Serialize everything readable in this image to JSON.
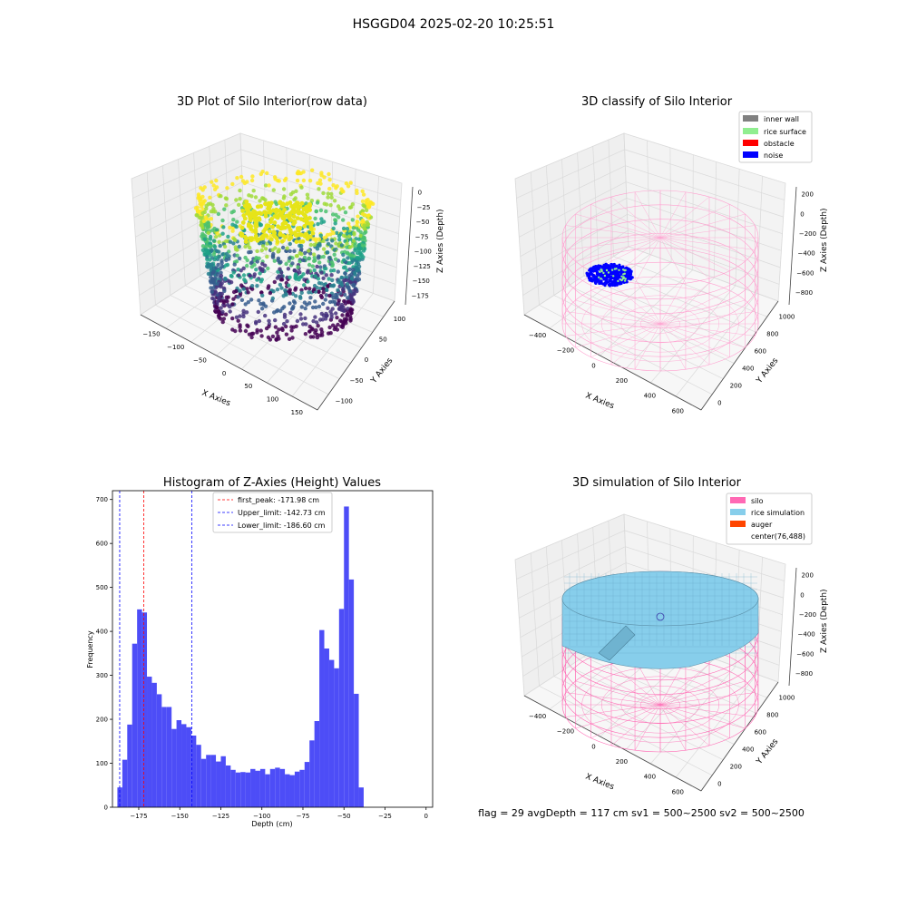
{
  "suptitle": "HSGGD04 2025-02-20 10:25:51",
  "status_line": "flag = 29  avgDepth = 117 cm  sv1 = 500~2500  sv2 = 500~2500",
  "panel_raw": {
    "title": "3D Plot of Silo Interior(row data)",
    "xlabel": "X Axies",
    "ylabel": "Y Axies",
    "zlabel": "Z Axies (Depth)",
    "xticks": [
      "−150",
      "−100",
      "−50",
      "0",
      "50",
      "100",
      "150"
    ],
    "yticks": [
      "−100",
      "−50",
      "0",
      "50",
      "100"
    ],
    "zticks": [
      "0",
      "−25",
      "−50",
      "−75",
      "−100",
      "−125",
      "−150",
      "−175"
    ],
    "colormap": "viridis"
  },
  "panel_classify": {
    "title": "3D classify of Silo Interior",
    "xlabel": "X Axies",
    "ylabel": "Y Axies",
    "zlabel": "Z Axies (Depth)",
    "xticks": [
      "−400",
      "−200",
      "0",
      "200",
      "400",
      "600"
    ],
    "yticks": [
      "0",
      "200",
      "400",
      "600",
      "800",
      "1000"
    ],
    "zticks": [
      "200",
      "0",
      "−200",
      "−400",
      "−600",
      "−800"
    ],
    "legend": [
      {
        "label": "inner wall",
        "color": "#808080"
      },
      {
        "label": "rice surface",
        "color": "#90ee90"
      },
      {
        "label": "obstacle",
        "color": "#ff0000"
      },
      {
        "label": "noise",
        "color": "#0000ff"
      }
    ],
    "wire_color": "#ff9fcf"
  },
  "panel_sim": {
    "title": "3D simulation of Silo Interior",
    "xlabel": "X Axies",
    "ylabel": "Y Axies",
    "zlabel": "Z Axies (Depth)",
    "xticks": [
      "−400",
      "−200",
      "0",
      "200",
      "400",
      "600"
    ],
    "yticks": [
      "0",
      "200",
      "400",
      "600",
      "800",
      "1000"
    ],
    "zticks": [
      "200",
      "0",
      "−200",
      "−400",
      "−600",
      "−800"
    ],
    "legend": [
      {
        "label": "silo",
        "color": "#ff69b4"
      },
      {
        "label": "rice simulation",
        "color": "#87ceeb"
      },
      {
        "label": "auger",
        "color": "#ff4500"
      },
      {
        "label": "center(76,488)",
        "color": ""
      }
    ]
  },
  "chart_data": {
    "type": "bar",
    "title": "Histogram of Z-Axies (Height) Values",
    "xlabel": "Depth (cm)",
    "ylabel": "Frequency",
    "bar_color": "#4d4df7",
    "bin_start": -188,
    "bin_width": 3,
    "values": [
      45,
      108,
      188,
      372,
      450,
      443,
      297,
      283,
      257,
      228,
      228,
      178,
      198,
      189,
      182,
      163,
      142,
      110,
      119,
      119,
      104,
      116,
      95,
      85,
      79,
      80,
      79,
      87,
      83,
      87,
      75,
      87,
      90,
      87,
      75,
      73,
      81,
      85,
      103,
      152,
      196,
      403,
      361,
      335,
      316,
      451,
      684,
      518,
      258,
      45
    ],
    "xlim": [
      -191,
      4
    ],
    "ylim": [
      0,
      720
    ],
    "xticks": [
      -175,
      -150,
      -125,
      -100,
      -75,
      -50,
      -25,
      0
    ],
    "xtick_labels": [
      "−175",
      "−150",
      "−125",
      "−100",
      "−75",
      "−50",
      "−25",
      "0"
    ],
    "yticks": [
      0,
      100,
      200,
      300,
      400,
      500,
      600,
      700
    ],
    "vlines": [
      {
        "label": "first_peak: -171.98 cm",
        "x": -171.98,
        "color": "#ff0000"
      },
      {
        "label": "Upper_limit: -142.73 cm",
        "x": -142.73,
        "color": "#0000ff"
      },
      {
        "label": "Lower_limit: -186.60 cm",
        "x": -186.6,
        "color": "#0000ff"
      }
    ],
    "legend_position": "top-center"
  }
}
